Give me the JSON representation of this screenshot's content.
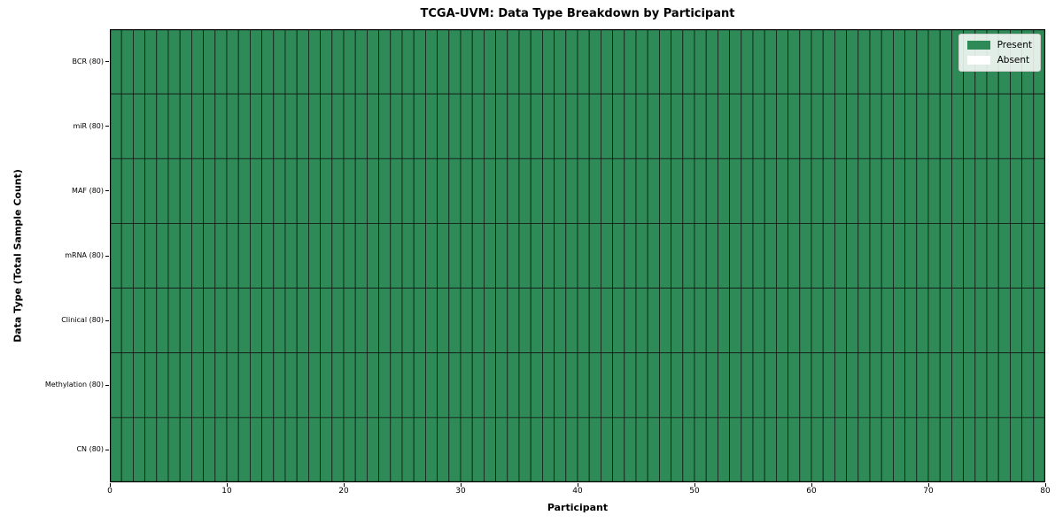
{
  "figure": {
    "title": "TCGA-UVM: Data Type Breakdown by Participant"
  },
  "axes": {
    "xlabel": "Participant",
    "ylabel": "Data Type (Total Sample Count)"
  },
  "legend": {
    "position": "upper right",
    "items": [
      {
        "label": "Present",
        "color": "#2E8B57"
      },
      {
        "label": "Absent",
        "color": "#FFFFFF"
      }
    ]
  },
  "colors": {
    "present": "#2E8B57",
    "absent": "#FFFFFF",
    "cell_edge": "#161616",
    "plot_border": "#000000",
    "background": "#FFFFFF"
  },
  "chart_data": {
    "type": "heatmap",
    "title": "TCGA-UVM: Data Type Breakdown by Participant",
    "xlabel": "Participant",
    "ylabel": "Data Type (Total Sample Count)",
    "xlim": [
      0,
      80
    ],
    "x_ticks": [
      0,
      10,
      20,
      30,
      40,
      50,
      60,
      70,
      80
    ],
    "n_participants": 80,
    "legend_position": "upper right",
    "value_meaning": {
      "1": "Present",
      "0": "Absent"
    },
    "grid": "cell borders on, all cells outlined",
    "rows": [
      {
        "label": "BCR (80)",
        "data_type": "BCR",
        "total_samples": 80,
        "present_count": 80,
        "absent_count": 0,
        "values": [
          1,
          1,
          1,
          1,
          1,
          1,
          1,
          1,
          1,
          1,
          1,
          1,
          1,
          1,
          1,
          1,
          1,
          1,
          1,
          1,
          1,
          1,
          1,
          1,
          1,
          1,
          1,
          1,
          1,
          1,
          1,
          1,
          1,
          1,
          1,
          1,
          1,
          1,
          1,
          1,
          1,
          1,
          1,
          1,
          1,
          1,
          1,
          1,
          1,
          1,
          1,
          1,
          1,
          1,
          1,
          1,
          1,
          1,
          1,
          1,
          1,
          1,
          1,
          1,
          1,
          1,
          1,
          1,
          1,
          1,
          1,
          1,
          1,
          1,
          1,
          1,
          1,
          1,
          1,
          1
        ]
      },
      {
        "label": "miR (80)",
        "data_type": "miR",
        "total_samples": 80,
        "present_count": 80,
        "absent_count": 0,
        "values": [
          1,
          1,
          1,
          1,
          1,
          1,
          1,
          1,
          1,
          1,
          1,
          1,
          1,
          1,
          1,
          1,
          1,
          1,
          1,
          1,
          1,
          1,
          1,
          1,
          1,
          1,
          1,
          1,
          1,
          1,
          1,
          1,
          1,
          1,
          1,
          1,
          1,
          1,
          1,
          1,
          1,
          1,
          1,
          1,
          1,
          1,
          1,
          1,
          1,
          1,
          1,
          1,
          1,
          1,
          1,
          1,
          1,
          1,
          1,
          1,
          1,
          1,
          1,
          1,
          1,
          1,
          1,
          1,
          1,
          1,
          1,
          1,
          1,
          1,
          1,
          1,
          1,
          1,
          1,
          1
        ]
      },
      {
        "label": "MAF (80)",
        "data_type": "MAF",
        "total_samples": 80,
        "present_count": 80,
        "absent_count": 0,
        "values": [
          1,
          1,
          1,
          1,
          1,
          1,
          1,
          1,
          1,
          1,
          1,
          1,
          1,
          1,
          1,
          1,
          1,
          1,
          1,
          1,
          1,
          1,
          1,
          1,
          1,
          1,
          1,
          1,
          1,
          1,
          1,
          1,
          1,
          1,
          1,
          1,
          1,
          1,
          1,
          1,
          1,
          1,
          1,
          1,
          1,
          1,
          1,
          1,
          1,
          1,
          1,
          1,
          1,
          1,
          1,
          1,
          1,
          1,
          1,
          1,
          1,
          1,
          1,
          1,
          1,
          1,
          1,
          1,
          1,
          1,
          1,
          1,
          1,
          1,
          1,
          1,
          1,
          1,
          1,
          1
        ]
      },
      {
        "label": "mRNA (80)",
        "data_type": "mRNA",
        "total_samples": 80,
        "present_count": 80,
        "absent_count": 0,
        "values": [
          1,
          1,
          1,
          1,
          1,
          1,
          1,
          1,
          1,
          1,
          1,
          1,
          1,
          1,
          1,
          1,
          1,
          1,
          1,
          1,
          1,
          1,
          1,
          1,
          1,
          1,
          1,
          1,
          1,
          1,
          1,
          1,
          1,
          1,
          1,
          1,
          1,
          1,
          1,
          1,
          1,
          1,
          1,
          1,
          1,
          1,
          1,
          1,
          1,
          1,
          1,
          1,
          1,
          1,
          1,
          1,
          1,
          1,
          1,
          1,
          1,
          1,
          1,
          1,
          1,
          1,
          1,
          1,
          1,
          1,
          1,
          1,
          1,
          1,
          1,
          1,
          1,
          1,
          1,
          1
        ]
      },
      {
        "label": "Clinical (80)",
        "data_type": "Clinical",
        "total_samples": 80,
        "present_count": 80,
        "absent_count": 0,
        "values": [
          1,
          1,
          1,
          1,
          1,
          1,
          1,
          1,
          1,
          1,
          1,
          1,
          1,
          1,
          1,
          1,
          1,
          1,
          1,
          1,
          1,
          1,
          1,
          1,
          1,
          1,
          1,
          1,
          1,
          1,
          1,
          1,
          1,
          1,
          1,
          1,
          1,
          1,
          1,
          1,
          1,
          1,
          1,
          1,
          1,
          1,
          1,
          1,
          1,
          1,
          1,
          1,
          1,
          1,
          1,
          1,
          1,
          1,
          1,
          1,
          1,
          1,
          1,
          1,
          1,
          1,
          1,
          1,
          1,
          1,
          1,
          1,
          1,
          1,
          1,
          1,
          1,
          1,
          1,
          1
        ]
      },
      {
        "label": "Methylation (80)",
        "data_type": "Methylation",
        "total_samples": 80,
        "present_count": 80,
        "absent_count": 0,
        "values": [
          1,
          1,
          1,
          1,
          1,
          1,
          1,
          1,
          1,
          1,
          1,
          1,
          1,
          1,
          1,
          1,
          1,
          1,
          1,
          1,
          1,
          1,
          1,
          1,
          1,
          1,
          1,
          1,
          1,
          1,
          1,
          1,
          1,
          1,
          1,
          1,
          1,
          1,
          1,
          1,
          1,
          1,
          1,
          1,
          1,
          1,
          1,
          1,
          1,
          1,
          1,
          1,
          1,
          1,
          1,
          1,
          1,
          1,
          1,
          1,
          1,
          1,
          1,
          1,
          1,
          1,
          1,
          1,
          1,
          1,
          1,
          1,
          1,
          1,
          1,
          1,
          1,
          1,
          1,
          1
        ]
      },
      {
        "label": "CN (80)",
        "data_type": "CN",
        "total_samples": 80,
        "present_count": 80,
        "absent_count": 0,
        "values": [
          1,
          1,
          1,
          1,
          1,
          1,
          1,
          1,
          1,
          1,
          1,
          1,
          1,
          1,
          1,
          1,
          1,
          1,
          1,
          1,
          1,
          1,
          1,
          1,
          1,
          1,
          1,
          1,
          1,
          1,
          1,
          1,
          1,
          1,
          1,
          1,
          1,
          1,
          1,
          1,
          1,
          1,
          1,
          1,
          1,
          1,
          1,
          1,
          1,
          1,
          1,
          1,
          1,
          1,
          1,
          1,
          1,
          1,
          1,
          1,
          1,
          1,
          1,
          1,
          1,
          1,
          1,
          1,
          1,
          1,
          1,
          1,
          1,
          1,
          1,
          1,
          1,
          1,
          1,
          1
        ]
      }
    ]
  }
}
